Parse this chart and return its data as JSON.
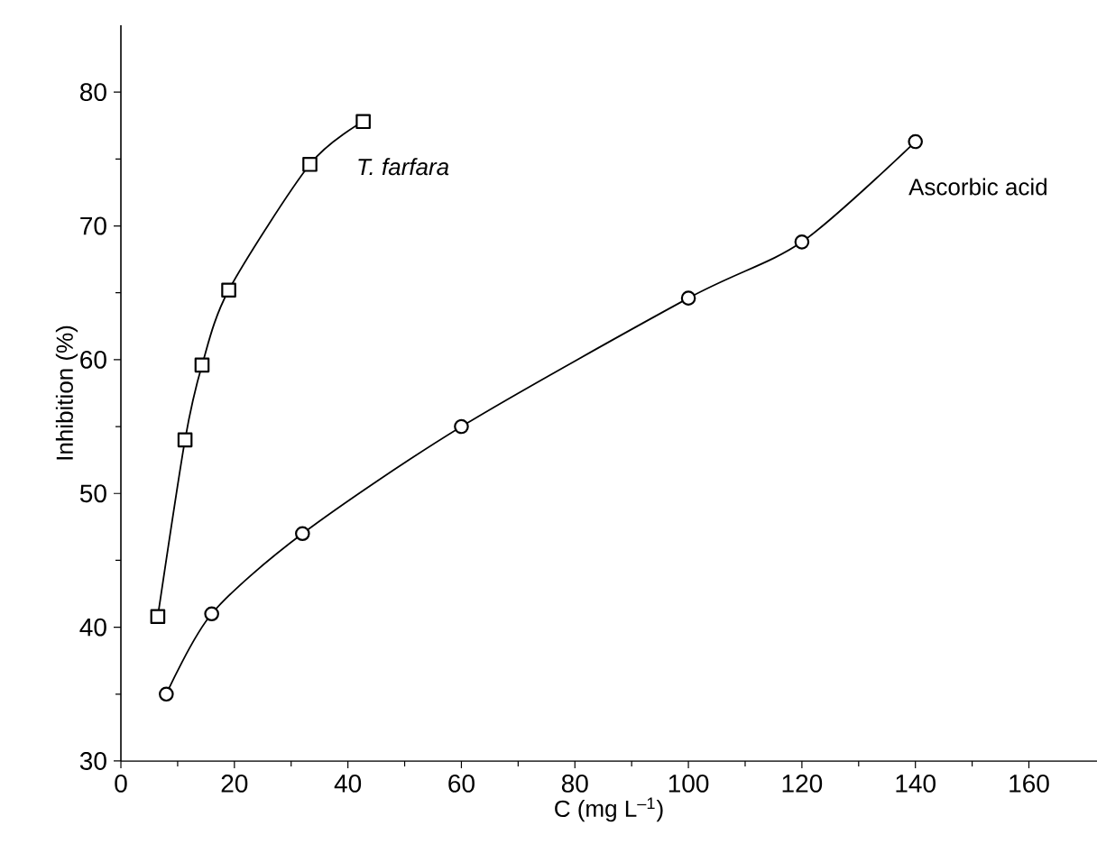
{
  "chart_data": {
    "type": "line",
    "xlabel": "C (mg L$^{–1}$)",
    "ylabel": "Inhibition (%)",
    "xlim": [
      0,
      172
    ],
    "xticks": [
      0,
      20,
      40,
      60,
      80,
      100,
      120,
      140,
      160
    ],
    "ylim": [
      30,
      85
    ],
    "yticks": [
      30,
      40,
      50,
      60,
      70,
      80
    ],
    "grid": false,
    "legend": false,
    "series": [
      {
        "name": "*T. farfara*",
        "color": "#000000",
        "marker": "square",
        "x": [
          6.5,
          11.3,
          14.3,
          19,
          33.3,
          42.7
        ],
        "values": [
          40.8,
          54,
          59.6,
          65.2,
          74.6,
          77.8
        ]
      },
      {
        "name": "Ascorbic acid",
        "color": "#000000",
        "marker": "circle",
        "x": [
          8,
          16,
          32,
          60,
          100,
          120,
          140
        ],
        "values": [
          35,
          41,
          47,
          55,
          64.6,
          68.8,
          76.3
        ]
      }
    ]
  }
}
